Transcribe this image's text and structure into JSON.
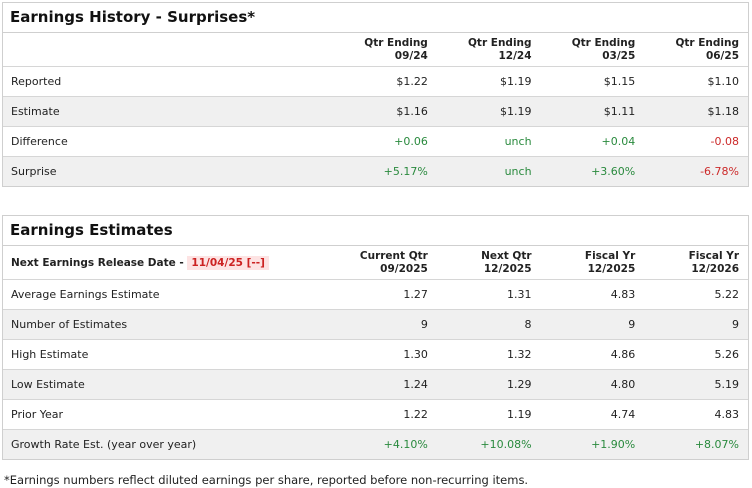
{
  "history": {
    "title": "Earnings History - Surprises*",
    "columns": [
      {
        "line1": "Qtr Ending",
        "line2": "09/24"
      },
      {
        "line1": "Qtr Ending",
        "line2": "12/24"
      },
      {
        "line1": "Qtr Ending",
        "line2": "03/25"
      },
      {
        "line1": "Qtr Ending",
        "line2": "06/25"
      }
    ],
    "rows": [
      {
        "label": "Reported",
        "values": [
          "$1.22",
          "$1.19",
          "$1.15",
          "$1.10"
        ]
      },
      {
        "label": "Estimate",
        "values": [
          "$1.16",
          "$1.19",
          "$1.11",
          "$1.18"
        ]
      },
      {
        "label": "Difference",
        "values": [
          "+0.06",
          "unch",
          "+0.04",
          "-0.08"
        ]
      },
      {
        "label": "Surprise",
        "values": [
          "+5.17%",
          "unch",
          "+3.60%",
          "-6.78%"
        ]
      }
    ]
  },
  "estimates": {
    "title": "Earnings Estimates",
    "release_label": "Next Earnings Release Date -",
    "release_date": "11/04/25 [--]",
    "columns": [
      {
        "line1": "Current Qtr",
        "line2": "09/2025"
      },
      {
        "line1": "Next Qtr",
        "line2": "12/2025"
      },
      {
        "line1": "Fiscal Yr",
        "line2": "12/2025"
      },
      {
        "line1": "Fiscal Yr",
        "line2": "12/2026"
      }
    ],
    "rows": [
      {
        "label": "Average Earnings Estimate",
        "values": [
          "1.27",
          "1.31",
          "4.83",
          "5.22"
        ]
      },
      {
        "label": "Number of Estimates",
        "values": [
          "9",
          "8",
          "9",
          "9"
        ]
      },
      {
        "label": "High Estimate",
        "values": [
          "1.30",
          "1.32",
          "4.86",
          "5.26"
        ]
      },
      {
        "label": "Low Estimate",
        "values": [
          "1.24",
          "1.29",
          "4.80",
          "5.19"
        ]
      },
      {
        "label": "Prior Year",
        "values": [
          "1.22",
          "1.19",
          "4.74",
          "4.83"
        ]
      },
      {
        "label": "Growth Rate Est. (year over year)",
        "values": [
          "+4.10%",
          "+10.08%",
          "+1.90%",
          "+8.07%"
        ]
      }
    ]
  },
  "footnote": "*Earnings numbers reflect diluted earnings per share, reported before non-recurring items.",
  "colors": {
    "positive": "#2a8a3e",
    "negative": "#cc2a2a",
    "release_highlight": "#fde3e3"
  }
}
